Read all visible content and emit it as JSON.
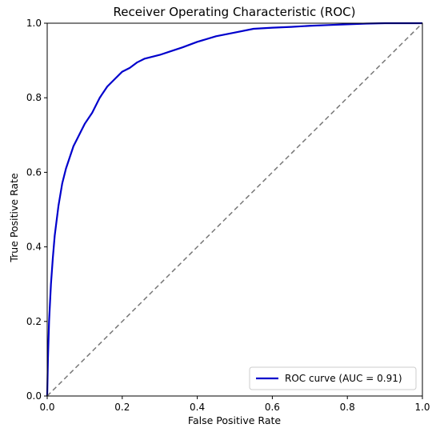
{
  "chart_data": {
    "type": "line",
    "title": "Receiver Operating Characteristic (ROC)",
    "xlabel": "False Positive Rate",
    "ylabel": "True Positive Rate",
    "xlim": [
      0.0,
      1.0
    ],
    "ylim": [
      0.0,
      1.0
    ],
    "x_ticks": [
      "0.0",
      "0.2",
      "0.4",
      "0.6",
      "0.8",
      "1.0"
    ],
    "y_ticks": [
      "0.0",
      "0.2",
      "0.4",
      "0.6",
      "0.8",
      "1.0"
    ],
    "grid": false,
    "legend": {
      "position": "lower-right",
      "entries": [
        "ROC curve (AUC = 0.91)"
      ]
    },
    "series": [
      {
        "name": "ROC curve (AUC = 0.91)",
        "color": "#0000cc",
        "style": "solid",
        "x": [
          0.0,
          0.002,
          0.005,
          0.01,
          0.015,
          0.02,
          0.03,
          0.04,
          0.05,
          0.06,
          0.07,
          0.08,
          0.09,
          0.1,
          0.12,
          0.14,
          0.16,
          0.18,
          0.2,
          0.22,
          0.24,
          0.26,
          0.28,
          0.3,
          0.33,
          0.36,
          0.4,
          0.45,
          0.5,
          0.55,
          0.6,
          0.65,
          0.7,
          0.75,
          0.8,
          0.85,
          0.9,
          0.95,
          1.0
        ],
        "y": [
          0.0,
          0.1,
          0.2,
          0.3,
          0.37,
          0.43,
          0.51,
          0.57,
          0.61,
          0.64,
          0.67,
          0.69,
          0.71,
          0.73,
          0.76,
          0.8,
          0.83,
          0.85,
          0.87,
          0.88,
          0.895,
          0.905,
          0.91,
          0.915,
          0.925,
          0.935,
          0.95,
          0.965,
          0.975,
          0.985,
          0.988,
          0.99,
          0.993,
          0.995,
          0.997,
          0.999,
          1.0,
          1.0,
          1.0
        ]
      },
      {
        "name": "",
        "color": "#777777",
        "style": "dashed",
        "x": [
          0.0,
          1.0
        ],
        "y": [
          0.0,
          1.0
        ]
      }
    ]
  }
}
